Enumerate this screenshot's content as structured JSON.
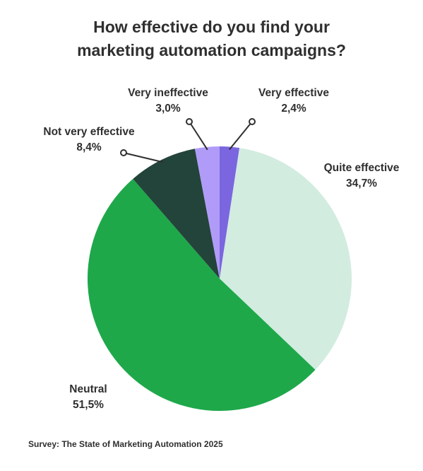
{
  "chart_data": {
    "type": "pie",
    "title_lines": [
      "How effective do you find your",
      "marketing automation campaigns?"
    ],
    "slices": [
      {
        "label": "Very effective",
        "value_label": "2,4%",
        "value": 2.4,
        "color": "#7b66e0"
      },
      {
        "label": "Quite effective",
        "value_label": "34,7%",
        "value": 34.7,
        "color": "#d2ece0"
      },
      {
        "label": "Neutral",
        "value_label": "51,5%",
        "value": 51.5,
        "color": "#1ea84a"
      },
      {
        "label": "Not very effective",
        "value_label": "8,4%",
        "value": 8.4,
        "color": "#23443a"
      },
      {
        "label": "Very ineffective",
        "value_label": "3,0%",
        "value": 3.0,
        "color": "#b09cf8"
      }
    ],
    "source": "Survey: The State of Marketing Automation 2025"
  }
}
